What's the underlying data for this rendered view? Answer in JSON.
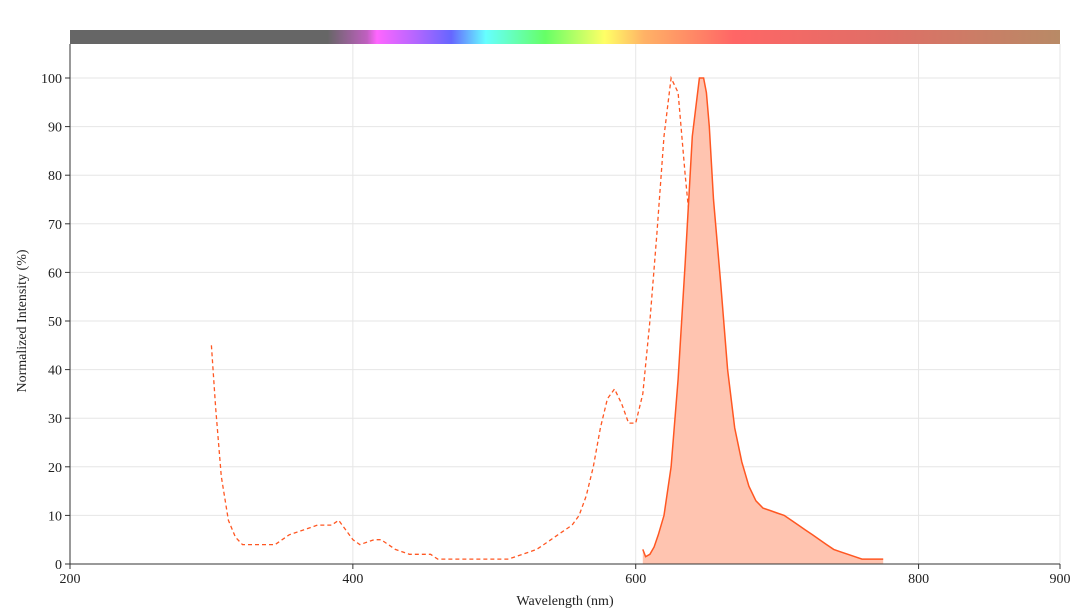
{
  "chart_data": {
    "type": "area",
    "xlabel": "Wavelength (nm)",
    "ylabel": "Normalized Intensity (%)",
    "xlim": [
      200,
      900
    ],
    "ylim": [
      0,
      100
    ],
    "x_ticks": [
      200,
      400,
      600,
      800,
      900
    ],
    "y_ticks": [
      0,
      10,
      20,
      30,
      40,
      50,
      60,
      70,
      80,
      90,
      100
    ],
    "grid": true,
    "spectrum_bar": true,
    "series": [
      {
        "style": "dashed-line",
        "color": "#ff5722",
        "x": [
          300,
          303,
          307,
          312,
          317,
          322,
          330,
          345,
          355,
          365,
          375,
          385,
          390,
          395,
          400,
          405,
          415,
          420,
          430,
          440,
          455,
          460,
          480,
          500,
          510,
          520,
          530,
          540,
          545,
          550,
          555,
          560,
          565,
          570,
          575,
          580,
          585,
          590,
          595,
          600,
          605,
          610,
          615,
          620,
          625,
          630,
          635,
          640,
          642,
          645,
          650,
          655,
          660,
          665,
          670,
          675,
          680,
          685,
          690,
          695
        ],
        "y": [
          45,
          32,
          18,
          9,
          5.5,
          4,
          4,
          4,
          6,
          7,
          8,
          8,
          9,
          7,
          5,
          4,
          5,
          5,
          3,
          2,
          2,
          1,
          1,
          1,
          1,
          2,
          3,
          5,
          6,
          7,
          8,
          10,
          14,
          20,
          28,
          34,
          36,
          33,
          29,
          29,
          35,
          50,
          68,
          88,
          100,
          97,
          80,
          65,
          55,
          45,
          30,
          18,
          12,
          8,
          5,
          3,
          2,
          1,
          0.5,
          0
        ]
      },
      {
        "style": "filled-area",
        "color": "#ff5722",
        "fill": "#ffc4b0",
        "x": [
          605,
          607,
          610,
          613,
          616,
          620,
          625,
          630,
          635,
          640,
          645,
          648,
          650,
          652,
          655,
          660,
          665,
          670,
          675,
          680,
          685,
          690,
          695,
          700,
          705,
          710,
          715,
          720,
          725,
          730,
          735,
          740,
          745,
          750,
          755,
          760,
          770,
          775
        ],
        "y": [
          3,
          1.5,
          2,
          3.5,
          6,
          10,
          20,
          38,
          62,
          88,
          100,
          100,
          97,
          90,
          75,
          58,
          40,
          28,
          21,
          16,
          13,
          11.5,
          11,
          10.5,
          10,
          9,
          8,
          7,
          6,
          5,
          4,
          3,
          2.5,
          2,
          1.5,
          1,
          1,
          1
        ]
      }
    ]
  }
}
